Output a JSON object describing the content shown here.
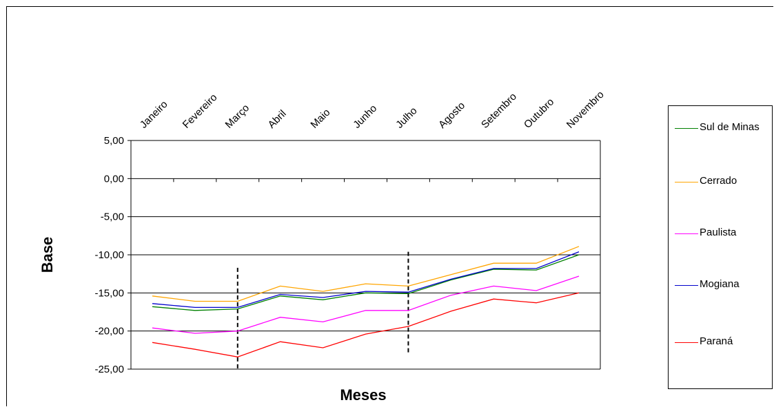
{
  "chart_data": {
    "type": "line",
    "xlabel": "Meses",
    "ylabel": "Base",
    "ylim": [
      -25,
      5
    ],
    "y_ticks": [
      "5,00",
      "0,00",
      "-5,00",
      "-10,00",
      "-15,00",
      "-20,00",
      "-25,00"
    ],
    "y_tick_values": [
      5,
      0,
      -5,
      -10,
      -15,
      -20,
      -25
    ],
    "categories": [
      "Janeiro",
      "Fevereiro",
      "Março",
      "Abril",
      "Maio",
      "Junho",
      "Julho",
      "Agosto",
      "Setembro",
      "Outubro",
      "Novembro"
    ],
    "grid": true,
    "legend_position": "right",
    "series": [
      {
        "name": "Sul de Minas",
        "color": "#008000",
        "values": [
          -16.8,
          -17.3,
          -17.1,
          -15.4,
          -15.9,
          -15.0,
          -15.1,
          -13.3,
          -11.9,
          -12.0,
          -10.0
        ]
      },
      {
        "name": "Cerrado",
        "color": "#FFA500",
        "values": [
          -15.4,
          -16.1,
          -16.1,
          -14.1,
          -14.8,
          -13.8,
          -14.1,
          -12.6,
          -11.1,
          -11.1,
          -8.9
        ]
      },
      {
        "name": "Paulista",
        "color": "#FF00FF",
        "values": [
          -19.6,
          -20.3,
          -20.0,
          -18.2,
          -18.8,
          -17.3,
          -17.3,
          -15.3,
          -14.1,
          -14.7,
          -12.8
        ]
      },
      {
        "name": "Mogiana",
        "color": "#0000CC",
        "values": [
          -16.4,
          -16.9,
          -16.9,
          -15.2,
          -15.6,
          -14.8,
          -14.9,
          -13.2,
          -11.8,
          -11.8,
          -9.6
        ]
      },
      {
        "name": "Paraná",
        "color": "#FF0000",
        "values": [
          -21.5,
          -22.4,
          -23.4,
          -21.4,
          -22.2,
          -20.4,
          -19.4,
          -17.4,
          -15.8,
          -16.3,
          -15.0
        ]
      }
    ],
    "reference_lines": [
      {
        "style": "dashed",
        "x": 2,
        "y_range": [
          -25,
          -11.7
        ]
      },
      {
        "style": "dashed",
        "x": 6,
        "y_range": [
          -22.9,
          -9.6
        ]
      }
    ]
  }
}
